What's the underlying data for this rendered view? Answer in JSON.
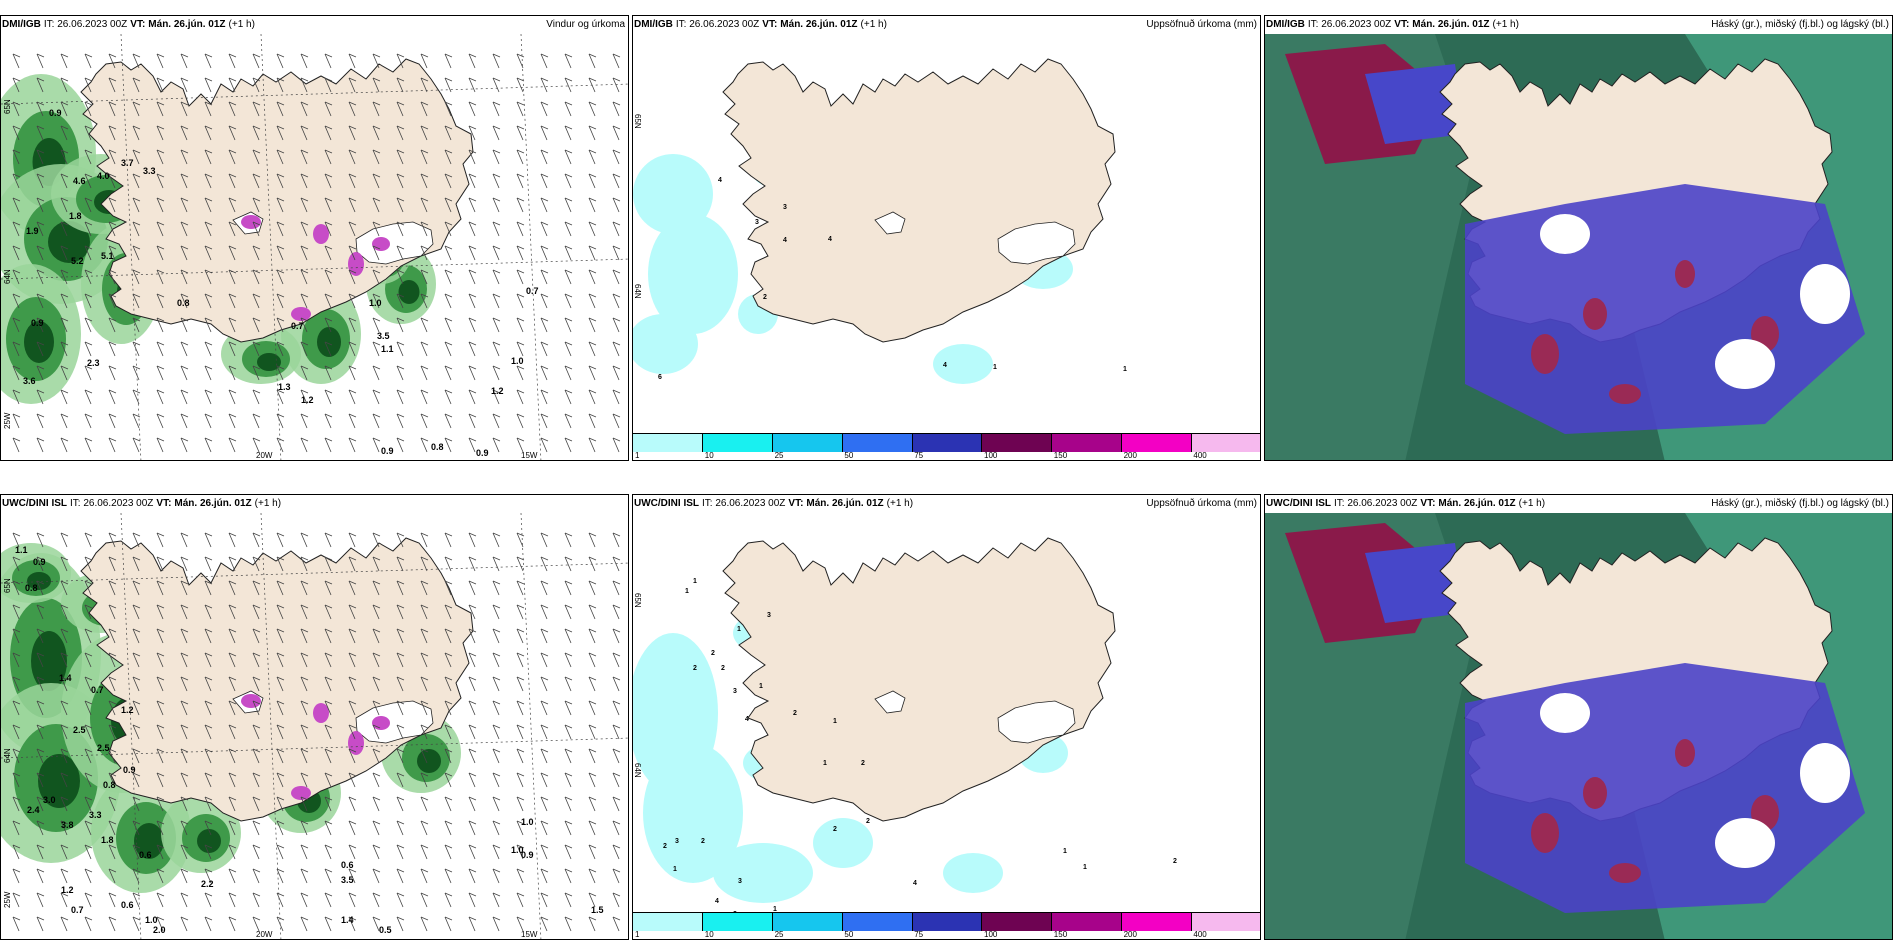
{
  "valid_time_prefix": "VT:",
  "panels": [
    {
      "model": "DMI/IGB",
      "it": "IT: 26.06.2023 00Z",
      "vt": "Mán. 26.jún. 01Z",
      "lead": "(+1 h)",
      "product": "Vindur og úrkoma"
    },
    {
      "model": "DMI/IGB",
      "it": "IT: 26.06.2023 00Z",
      "vt": "Mán. 26.jún. 01Z",
      "lead": "(+1 h)",
      "product": "Uppsöfnuð úrkoma (mm)"
    },
    {
      "model": "DMI/IGB",
      "it": "IT: 26.06.2023 00Z",
      "vt": "Mán. 26.jún. 01Z",
      "lead": "(+1 h)",
      "product": "Háský (gr.), miðský (fj.bl.) og lágský (bl.)"
    },
    {
      "model": "UWC/DINI ISL",
      "it": "IT: 26.06.2023 00Z",
      "vt": "Mán. 26.jún. 01Z",
      "lead": "(+1 h)",
      "product": ""
    },
    {
      "model": "UWC/DINI ISL",
      "it": "IT: 26.06.2023 00Z",
      "vt": "Mán. 26.jún. 01Z",
      "lead": "(+1 h)",
      "product": "Uppsöfnuð úrkoma (mm)"
    },
    {
      "model": "UWC/DINI ISL",
      "it": "IT: 26.06.2023 00Z",
      "vt": "Mán. 26.jún. 01Z",
      "lead": "(+1 h)",
      "product": "Háský (gr.), miðský (fj.bl.) og lágský (bl.)"
    }
  ],
  "axis_labels": {
    "lat_65": "65N",
    "lat_64": "64N",
    "lon_25": "25W",
    "lon_20": "20W",
    "lon_15": "15W"
  },
  "colorbar": {
    "labels": [
      "1",
      "10",
      "25",
      "50",
      "75",
      "100",
      "150",
      "200",
      "400"
    ],
    "colors": [
      "#b8fbfb",
      "#19f0f0",
      "#16c6ee",
      "#2f6ff2",
      "#2b33b3",
      "#6e0352",
      "#a7038a",
      "#f300c4",
      "#f6b9ee"
    ]
  },
  "wind_precip_top": [
    "0.9",
    "4.6",
    "4.0",
    "3.7",
    "3.3",
    "1.8",
    "1.9",
    "5.2",
    "5.1",
    "0.8",
    "0.9",
    "2.3",
    "3.6",
    "0.7",
    "1.0",
    "1.3",
    "1.2",
    "3.5",
    "1.1",
    "0.9",
    "0.8",
    "0.9",
    "1.0",
    "1.2",
    "0.7"
  ],
  "wind_precip_bottom": [
    "1.1",
    "0.9",
    "0.8",
    "2.5",
    "1.4",
    "0.7",
    "1.2",
    "2.5",
    "0.9",
    "1.8",
    "2.4",
    "3.0",
    "3.8",
    "3.3",
    "0.8",
    "0.6",
    "1.0",
    "1.2",
    "0.7",
    "0.6",
    "2.0",
    "1.4",
    "0.5",
    "0.6",
    "1.0",
    "3.5",
    "0.9",
    "1.0",
    "2.2",
    "1.5"
  ],
  "accum_top": [
    "4",
    "3",
    "4",
    "2",
    "4",
    "4",
    "1",
    "1",
    "6",
    "3"
  ],
  "accum_bottom": [
    "1",
    "1",
    "3",
    "1",
    "2",
    "2",
    "2",
    "1",
    "3",
    "4",
    "2",
    "1",
    "1",
    "2",
    "2",
    "2",
    "3",
    "4",
    "2",
    "1",
    "2",
    "1",
    "3",
    "2",
    "4",
    "1",
    "1",
    "2"
  ]
}
